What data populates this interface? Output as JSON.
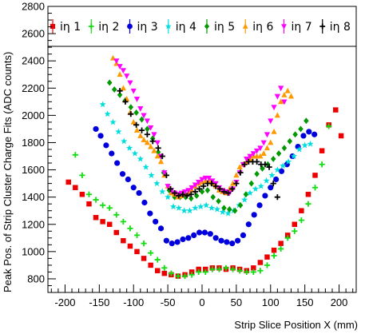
{
  "chart_data": {
    "type": "scatter",
    "xlabel": "Strip Slice Position X (mm)",
    "ylabel": "Peak Pos. of Strip Cluster Charge Fits (ADC counts)",
    "xlim": [
      -225,
      225
    ],
    "ylim": [
      700,
      2800
    ],
    "x_ticks": [
      -200,
      -150,
      -100,
      -50,
      0,
      50,
      100,
      150,
      200
    ],
    "y_ticks": [
      800,
      1000,
      1200,
      1400,
      1600,
      1800,
      2000,
      2200,
      2400,
      2600,
      2800
    ],
    "grid": false,
    "legend_position": "top",
    "series": [
      {
        "name": "iη 1",
        "color": "#ee0000",
        "marker": "square",
        "x": [
          -195,
          -185,
          -175,
          -165,
          -155,
          -145,
          -135,
          -125,
          -115,
          -105,
          -95,
          -85,
          -75,
          -65,
          -55,
          -45,
          -35,
          -25,
          -15,
          -5,
          5,
          15,
          25,
          35,
          45,
          55,
          65,
          75,
          85,
          95,
          105,
          115,
          125,
          135,
          145,
          155,
          165,
          175,
          185,
          195,
          203
        ],
        "y": [
          1510,
          1470,
          1420,
          1350,
          1250,
          1220,
          1200,
          1140,
          1080,
          1040,
          1000,
          950,
          900,
          860,
          840,
          830,
          820,
          830,
          850,
          870,
          870,
          880,
          880,
          870,
          880,
          870,
          860,
          880,
          920,
          960,
          1010,
          1060,
          1120,
          1200,
          1300,
          1420,
          1560,
          1740,
          1930,
          2040,
          1850
        ]
      },
      {
        "name": "iη 2",
        "color": "#11dd11",
        "marker": "plus",
        "x": [
          -185,
          -175,
          -165,
          -155,
          -145,
          -135,
          -125,
          -115,
          -105,
          -95,
          -85,
          -75,
          -65,
          -55,
          -45,
          -35,
          -25,
          -15,
          -5,
          5,
          15,
          25,
          35,
          45,
          55,
          65,
          75,
          85,
          95,
          105,
          115,
          125,
          135,
          145,
          155,
          165,
          175,
          185
        ],
        "y": [
          1710,
          1560,
          1420,
          1380,
          1340,
          1320,
          1270,
          1220,
          1170,
          1120,
          1060,
          990,
          940,
          880,
          840,
          820,
          820,
          830,
          850,
          850,
          870,
          870,
          880,
          870,
          860,
          850,
          850,
          860,
          900,
          970,
          1020,
          1100,
          1150,
          1230,
          1350,
          1470,
          1640,
          1920
        ]
      },
      {
        "name": "iη 3",
        "color": "#0000dd",
        "marker": "circle",
        "x": [
          -155,
          -148,
          -140,
          -132,
          -124,
          -116,
          -108,
          -100,
          -92,
          -84,
          -76,
          -68,
          -60,
          -52,
          -44,
          -36,
          -28,
          -20,
          -12,
          -4,
          4,
          12,
          20,
          28,
          36,
          44,
          52,
          60,
          68,
          76,
          84,
          92,
          100,
          108,
          116,
          124,
          132,
          140,
          148,
          156,
          164
        ],
        "y": [
          1900,
          1850,
          1780,
          1720,
          1650,
          1570,
          1530,
          1470,
          1430,
          1360,
          1280,
          1220,
          1170,
          1080,
          1060,
          1070,
          1090,
          1100,
          1120,
          1140,
          1140,
          1130,
          1100,
          1080,
          1070,
          1060,
          1080,
          1120,
          1200,
          1270,
          1340,
          1410,
          1470,
          1530,
          1590,
          1640,
          1700,
          1770,
          1850,
          1880,
          1860
        ]
      },
      {
        "name": "iη 4",
        "color": "#00dddd",
        "marker": "star",
        "x": [
          -145,
          -138,
          -130,
          -122,
          -114,
          -106,
          -98,
          -90,
          -82,
          -74,
          -66,
          -58,
          -50,
          -42,
          -34,
          -26,
          -18,
          -10,
          -2,
          6,
          14,
          22,
          30,
          38,
          46,
          54,
          62,
          70,
          78,
          86,
          94,
          102,
          110,
          118,
          126,
          134,
          142,
          150,
          158
        ],
        "y": [
          2080,
          2010,
          1950,
          1880,
          1810,
          1760,
          1720,
          1680,
          1620,
          1560,
          1500,
          1440,
          1400,
          1330,
          1320,
          1300,
          1300,
          1320,
          1330,
          1340,
          1320,
          1310,
          1290,
          1280,
          1300,
          1340,
          1380,
          1430,
          1460,
          1480,
          1520,
          1560,
          1600,
          1630,
          1660,
          1700,
          1750,
          1780,
          1790
        ]
      },
      {
        "name": "iη 5",
        "color": "#009900",
        "marker": "diamond",
        "x": [
          -135,
          -128,
          -120,
          -112,
          -104,
          -96,
          -88,
          -80,
          -72,
          -64,
          -56,
          -48,
          -40,
          -32,
          -24,
          -16,
          -8,
          0,
          8,
          16,
          24,
          32,
          40,
          48,
          56,
          64,
          72,
          80,
          88,
          96,
          104,
          112,
          120,
          128,
          136,
          144,
          152
        ],
        "y": [
          2240,
          2190,
          2150,
          2110,
          2060,
          2020,
          1970,
          1900,
          1830,
          1730,
          1580,
          1450,
          1400,
          1400,
          1400,
          1390,
          1410,
          1440,
          1450,
          1400,
          1370,
          1320,
          1310,
          1300,
          1340,
          1420,
          1500,
          1570,
          1610,
          1640,
          1680,
          1720,
          1760,
          1810,
          1860,
          1900,
          1960
        ]
      },
      {
        "name": "iη 6",
        "color": "#ff9900",
        "marker": "triangle",
        "x": [
          -130,
          -125,
          -120,
          -115,
          -110,
          -105,
          -100,
          -95,
          -90,
          -85,
          -80,
          -75,
          -70,
          -65,
          -60,
          -55,
          -50,
          -45,
          -40,
          -35,
          -30,
          -25,
          -20,
          -15,
          -10,
          -5,
          0,
          5,
          10,
          15,
          20,
          25,
          30,
          35,
          40,
          45,
          50,
          55,
          60,
          65,
          70,
          75,
          80,
          85,
          90,
          95,
          100,
          105,
          110,
          115,
          120,
          125,
          130
        ],
        "y": [
          2420,
          2380,
          2300,
          2200,
          2120,
          2020,
          1950,
          1890,
          1850,
          1820,
          1800,
          1770,
          1740,
          1700,
          1660,
          1560,
          1480,
          1430,
          1420,
          1400,
          1410,
          1420,
          1430,
          1450,
          1480,
          1500,
          1510,
          1520,
          1520,
          1500,
          1480,
          1450,
          1440,
          1430,
          1460,
          1500,
          1560,
          1620,
          1640,
          1660,
          1680,
          1700,
          1700,
          1700,
          1720,
          1760,
          1800,
          1880,
          2000,
          2100,
          2150,
          2180,
          2140
        ]
      },
      {
        "name": "iη 7",
        "color": "#ff00ff",
        "marker": "triangle-down",
        "x": [
          -125,
          -120,
          -115,
          -110,
          -105,
          -100,
          -95,
          -90,
          -85,
          -80,
          -75,
          -70,
          -65,
          -60,
          -55,
          -50,
          -45,
          -40,
          -35,
          -30,
          -25,
          -20,
          -15,
          -10,
          -5,
          0,
          5,
          10,
          15,
          20,
          25,
          30,
          35,
          40,
          45,
          50,
          55,
          60,
          65,
          70,
          75,
          80,
          85,
          90,
          95,
          100,
          105,
          110,
          115,
          120
        ],
        "y": [
          2400,
          2360,
          2330,
          2290,
          2240,
          2180,
          2120,
          2050,
          2000,
          1960,
          1910,
          1860,
          1800,
          1700,
          1580,
          1480,
          1450,
          1430,
          1420,
          1430,
          1440,
          1450,
          1470,
          1490,
          1510,
          1530,
          1540,
          1540,
          1520,
          1500,
          1470,
          1450,
          1440,
          1430,
          1460,
          1510,
          1580,
          1640,
          1680,
          1700,
          1720,
          1740,
          1760,
          1800,
          1860,
          1960,
          2060,
          2140,
          2200,
          2100
        ]
      },
      {
        "name": "iη 8",
        "color": "#000000",
        "marker": "plus",
        "x": [
          -120,
          -112,
          -104,
          -96,
          -88,
          -80,
          -72,
          -64,
          -58,
          -52,
          -46,
          -40,
          -34,
          -28,
          -22,
          -16,
          -10,
          -4,
          2,
          8,
          14,
          20,
          26,
          32,
          38,
          44,
          50,
          56,
          62,
          68,
          74,
          80,
          86,
          92,
          98,
          104,
          110
        ],
        "y": [
          2180,
          2100,
          2010,
          1930,
          1890,
          1860,
          1810,
          1760,
          1700,
          1560,
          1460,
          1430,
          1410,
          1420,
          1410,
          1420,
          1440,
          1460,
          1480,
          1500,
          1500,
          1480,
          1460,
          1440,
          1430,
          1460,
          1500,
          1580,
          1640,
          1660,
          1660,
          1660,
          1640,
          1640,
          1620,
          1500,
          1400
        ]
      }
    ]
  }
}
